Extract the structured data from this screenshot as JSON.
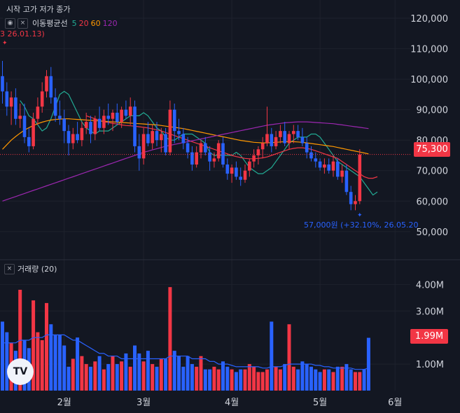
{
  "legend": {
    "ohlc_label": "시작 고가 저가 종가"
  },
  "indicator": {
    "name": "이동평균선",
    "periods": [
      {
        "label": "5",
        "color": "#22ab94"
      },
      {
        "label": "20",
        "color": "#f23645"
      },
      {
        "label": "60",
        "color": "#ff9800"
      },
      {
        "label": "120",
        "color": "#9c27b0"
      }
    ]
  },
  "annotations": {
    "high_text": "3 26.01.13)",
    "low_text": "57,000원 (+32.10%, 26.05.20"
  },
  "volume_legend": {
    "label": "거래량 (20)"
  },
  "current": {
    "price_label": "75,300",
    "price": 75300,
    "volume_label": "1.99M",
    "volume": 1.99
  },
  "colors": {
    "up": "#f23645",
    "down": "#2962ff",
    "bg": "#131722"
  },
  "chart_data": [
    {
      "type": "candlestick",
      "y_ticks": [
        "120,000",
        "110,000",
        "100,000",
        "90,000",
        "80,000",
        "70,000",
        "60,000",
        "50,000"
      ],
      "y_tick_values": [
        120000,
        110000,
        100000,
        90000,
        80000,
        70000,
        60000,
        50000
      ],
      "ylim": [
        41000,
        123000
      ],
      "x_labels": [
        {
          "label": "2월",
          "index": 14
        },
        {
          "label": "3월",
          "index": 32
        },
        {
          "label": "4월",
          "index": 52
        },
        {
          "label": "5월",
          "index": 72
        },
        {
          "label": "6월",
          "index": 89
        }
      ],
      "candles": [
        [
          101000,
          106000,
          92000,
          96000
        ],
        [
          96000,
          99000,
          88000,
          91000
        ],
        [
          91000,
          96000,
          85000,
          94000
        ],
        [
          94000,
          97000,
          85000,
          87000
        ],
        [
          87000,
          92000,
          84000,
          88000
        ],
        [
          88000,
          92000,
          79000,
          81000
        ],
        [
          81000,
          84000,
          76000,
          78000
        ],
        [
          78000,
          89000,
          77000,
          87000
        ],
        [
          87000,
          94000,
          85000,
          91000
        ],
        [
          91000,
          99000,
          89000,
          96000
        ],
        [
          96000,
          103000,
          94000,
          101000
        ],
        [
          101000,
          104000,
          92000,
          94000
        ],
        [
          94000,
          97000,
          86000,
          88000
        ],
        [
          88000,
          93000,
          85000,
          87000
        ],
        [
          87000,
          90000,
          79000,
          83000
        ],
        [
          83000,
          85000,
          75000,
          79000
        ],
        [
          79000,
          84000,
          77000,
          82000
        ],
        [
          82000,
          86000,
          79000,
          80000
        ],
        [
          80000,
          86000,
          78000,
          84000
        ],
        [
          84000,
          89000,
          82000,
          86000
        ],
        [
          86000,
          88000,
          79000,
          82000
        ],
        [
          82000,
          88000,
          80000,
          87000
        ],
        [
          87000,
          91000,
          83000,
          84000
        ],
        [
          84000,
          90000,
          82000,
          88000
        ],
        [
          88000,
          92000,
          85000,
          87000
        ],
        [
          87000,
          90000,
          83000,
          89000
        ],
        [
          89000,
          92000,
          85000,
          86000
        ],
        [
          86000,
          91000,
          84000,
          90000
        ],
        [
          90000,
          93000,
          87000,
          88000
        ],
        [
          88000,
          94000,
          85000,
          91000
        ],
        [
          91000,
          93000,
          76000,
          78000
        ],
        [
          78000,
          82000,
          70000,
          74000
        ],
        [
          74000,
          84000,
          72000,
          82000
        ],
        [
          82000,
          86000,
          78000,
          79000
        ],
        [
          79000,
          85000,
          77000,
          83000
        ],
        [
          83000,
          86000,
          78000,
          80000
        ],
        [
          80000,
          84000,
          76000,
          82000
        ],
        [
          82000,
          84000,
          75000,
          76000
        ],
        [
          76000,
          93000,
          75000,
          90000
        ],
        [
          90000,
          92000,
          79000,
          83000
        ],
        [
          83000,
          87000,
          80000,
          82000
        ],
        [
          82000,
          84000,
          77000,
          79000
        ],
        [
          79000,
          81000,
          74000,
          76000
        ],
        [
          76000,
          78000,
          70000,
          72000
        ],
        [
          72000,
          78000,
          71000,
          76000
        ],
        [
          76000,
          80000,
          74000,
          79000
        ],
        [
          79000,
          81000,
          75000,
          76000
        ],
        [
          76000,
          78000,
          70000,
          73000
        ],
        [
          73000,
          76000,
          71000,
          74000
        ],
        [
          74000,
          80000,
          73000,
          79000
        ],
        [
          79000,
          81000,
          71000,
          72000
        ],
        [
          72000,
          74000,
          67000,
          69000
        ],
        [
          69000,
          72000,
          66000,
          71000
        ],
        [
          71000,
          73000,
          67000,
          68000
        ],
        [
          68000,
          71000,
          65000,
          67000
        ],
        [
          67000,
          72000,
          66000,
          70000
        ],
        [
          70000,
          74000,
          68000,
          73000
        ],
        [
          73000,
          77000,
          71000,
          75000
        ],
        [
          75000,
          78000,
          72000,
          77000
        ],
        [
          77000,
          81000,
          74000,
          79000
        ],
        [
          79000,
          91000,
          78000,
          82000
        ],
        [
          82000,
          84000,
          76000,
          78000
        ],
        [
          78000,
          83000,
          77000,
          81000
        ],
        [
          81000,
          85000,
          79000,
          83000
        ],
        [
          83000,
          86000,
          78000,
          79000
        ],
        [
          79000,
          83000,
          77000,
          82000
        ],
        [
          82000,
          85000,
          79000,
          83000
        ],
        [
          83000,
          85000,
          80000,
          81000
        ],
        [
          81000,
          84000,
          78000,
          79000
        ],
        [
          79000,
          81000,
          74000,
          76000
        ],
        [
          76000,
          78000,
          73000,
          74000
        ],
        [
          74000,
          76000,
          71000,
          73000
        ],
        [
          73000,
          74000,
          70000,
          71000
        ],
        [
          71000,
          74000,
          69000,
          72000
        ],
        [
          72000,
          74000,
          69000,
          70000
        ],
        [
          70000,
          75000,
          68000,
          73000
        ],
        [
          73000,
          74000,
          67000,
          68000
        ],
        [
          68000,
          72000,
          66000,
          70000
        ],
        [
          70000,
          72000,
          62000,
          63000
        ],
        [
          63000,
          65000,
          57000,
          59000
        ],
        [
          59000,
          62000,
          57000,
          60000
        ],
        [
          60000,
          77000,
          59000,
          75300
        ]
      ],
      "ma": [
        {
          "name": "5",
          "color": "#22ab94",
          "start": 4,
          "values": [
            93000,
            91000,
            88000,
            87000,
            85000,
            83000,
            84000,
            87000,
            91000,
            95000,
            96000,
            95000,
            92000,
            89000,
            86000,
            84000,
            83000,
            82000,
            83000,
            83000,
            83000,
            84000,
            85000,
            86000,
            87000,
            88000,
            88000,
            88000,
            89000,
            88000,
            86000,
            84000,
            83000,
            81000,
            80000,
            80000,
            81000,
            82000,
            82000,
            82000,
            81000,
            80000,
            79000,
            76000,
            75000,
            75000,
            75000,
            75000,
            75000,
            76000,
            75000,
            73000,
            71000,
            70000,
            69000,
            69000,
            70000,
            71000,
            73000,
            75000,
            77000,
            79000,
            80000,
            81000,
            81000,
            81000,
            82000,
            82000,
            81000,
            79000,
            77000,
            75000,
            73000,
            72000,
            71000,
            70000,
            69000,
            68000,
            66000,
            64000,
            62000,
            63000
          ]
        },
        {
          "name": "20",
          "color": "#f23645",
          "start": 19,
          "values": [
            88000,
            87500,
            87000,
            86500,
            86000,
            85800,
            85500,
            85300,
            85000,
            84800,
            84700,
            84600,
            84400,
            84200,
            84000,
            83700,
            83400,
            83000,
            82500,
            82000,
            81500,
            81000,
            80500,
            80000,
            79500,
            79000,
            78500,
            78000,
            77500,
            77000,
            76500,
            76000,
            75500,
            75000,
            74600,
            74300,
            74000,
            73900,
            73900,
            74000,
            74200,
            74500,
            75000,
            75500,
            76000,
            76500,
            77000,
            77300,
            77500,
            77500,
            77300,
            77000,
            76500,
            76000,
            75500,
            75000,
            74500,
            74000,
            73000,
            72000,
            71000,
            70000,
            69000,
            68000,
            67500,
            67500,
            68000
          ]
        },
        {
          "name": "60",
          "color": "#ff9800",
          "start": 0,
          "values": [
            77000,
            78500,
            80000,
            81200,
            82300,
            83300,
            84100,
            84800,
            85400,
            85900,
            86300,
            86600,
            86800,
            86900,
            87000,
            87000,
            86900,
            86800,
            86700,
            86600,
            86500,
            86400,
            86300,
            86200,
            86100,
            86000,
            85900,
            85800,
            85700,
            85600,
            85500,
            85400,
            85300,
            85200,
            85100,
            85000,
            84800,
            84600,
            84400,
            84200,
            84000,
            83800,
            83500,
            83200,
            82900,
            82600,
            82300,
            82000,
            81700,
            81400,
            81100,
            80800,
            80500,
            80200,
            79900,
            79700,
            79500,
            79300,
            79200,
            79100,
            79100,
            79200,
            79300,
            79400,
            79500,
            79500,
            79500,
            79400,
            79300,
            79100,
            78900,
            78700,
            78500,
            78300,
            78100,
            77900,
            77600,
            77300,
            77000,
            76700,
            76400,
            76100,
            75800,
            75500
          ]
        },
        {
          "name": "120",
          "color": "#9c27b0",
          "start": 0,
          "values": [
            60000,
            60500,
            61000,
            61500,
            62000,
            62500,
            63000,
            63500,
            64000,
            64500,
            65000,
            65500,
            66000,
            66500,
            67000,
            67500,
            68000,
            68500,
            69000,
            69500,
            70000,
            70500,
            71000,
            71500,
            72000,
            72500,
            73000,
            73500,
            74000,
            74500,
            75000,
            75500,
            76000,
            76400,
            76800,
            77200,
            77600,
            78000,
            78300,
            78600,
            78900,
            79200,
            79500,
            79800,
            80100,
            80400,
            80700,
            81000,
            81300,
            81600,
            81900,
            82200,
            82500,
            82800,
            83100,
            83400,
            83700,
            84000,
            84300,
            84600,
            84900,
            85100,
            85300,
            85500,
            85700,
            85800,
            85900,
            86000,
            86000,
            86000,
            85900,
            85800,
            85700,
            85600,
            85500,
            85400,
            85200,
            85000,
            84800,
            84600,
            84400,
            84200,
            84000,
            83800
          ]
        }
      ]
    },
    {
      "type": "bar",
      "name": "거래량",
      "y_ticks": [
        "4.00M",
        "3.00M",
        "1.00M"
      ],
      "y_tick_values": [
        4.0,
        3.0,
        1.0
      ],
      "ylim": [
        0,
        4.3
      ],
      "values": [
        2.6,
        2.2,
        1.8,
        1.5,
        3.8,
        1.9,
        1.6,
        3.4,
        2.2,
        1.9,
        3.3,
        2.5,
        2.1,
        2.1,
        1.7,
        0.9,
        1.2,
        2.0,
        1.3,
        1.0,
        0.9,
        1.1,
        1.3,
        0.8,
        1.0,
        1.3,
        1.0,
        1.1,
        1.4,
        0.9,
        1.7,
        1.4,
        1.1,
        1.5,
        1.0,
        0.9,
        1.2,
        1.2,
        3.9,
        1.5,
        1.3,
        0.9,
        1.3,
        1.0,
        0.9,
        1.3,
        0.8,
        0.8,
        0.9,
        0.8,
        1.1,
        0.9,
        0.8,
        0.7,
        0.8,
        0.8,
        1.0,
        0.9,
        0.7,
        0.7,
        0.8,
        2.6,
        0.9,
        0.8,
        1.0,
        2.5,
        0.9,
        0.8,
        1.1,
        1.0,
        0.9,
        0.8,
        0.7,
        0.8,
        0.8,
        0.7,
        0.9,
        0.9,
        1.0,
        0.8,
        0.7,
        0.7,
        0.8,
        1.99
      ],
      "ma": [
        1.8,
        1.8,
        1.8,
        1.8,
        1.9,
        1.9,
        1.9,
        2.0,
        2.0,
        2.0,
        2.1,
        2.1,
        2.1,
        2.1,
        2.1,
        2.0,
        1.9,
        1.9,
        1.8,
        1.7,
        1.6,
        1.5,
        1.4,
        1.4,
        1.3,
        1.3,
        1.3,
        1.2,
        1.2,
        1.2,
        1.2,
        1.2,
        1.2,
        1.2,
        1.2,
        1.2,
        1.2,
        1.2,
        1.3,
        1.3,
        1.3,
        1.3,
        1.3,
        1.2,
        1.2,
        1.2,
        1.2,
        1.1,
        1.1,
        1.0,
        1.0,
        1.0,
        0.95,
        0.9,
        0.9,
        0.9,
        0.9,
        0.9,
        0.9,
        0.85,
        0.85,
        0.9,
        0.9,
        0.9,
        0.95,
        1.0,
        1.0,
        1.0,
        1.0,
        1.0,
        1.0,
        0.95,
        0.95,
        0.9,
        0.9,
        0.85,
        0.85,
        0.85,
        0.85,
        0.85,
        0.8,
        0.8,
        0.8,
        0.85
      ]
    }
  ]
}
